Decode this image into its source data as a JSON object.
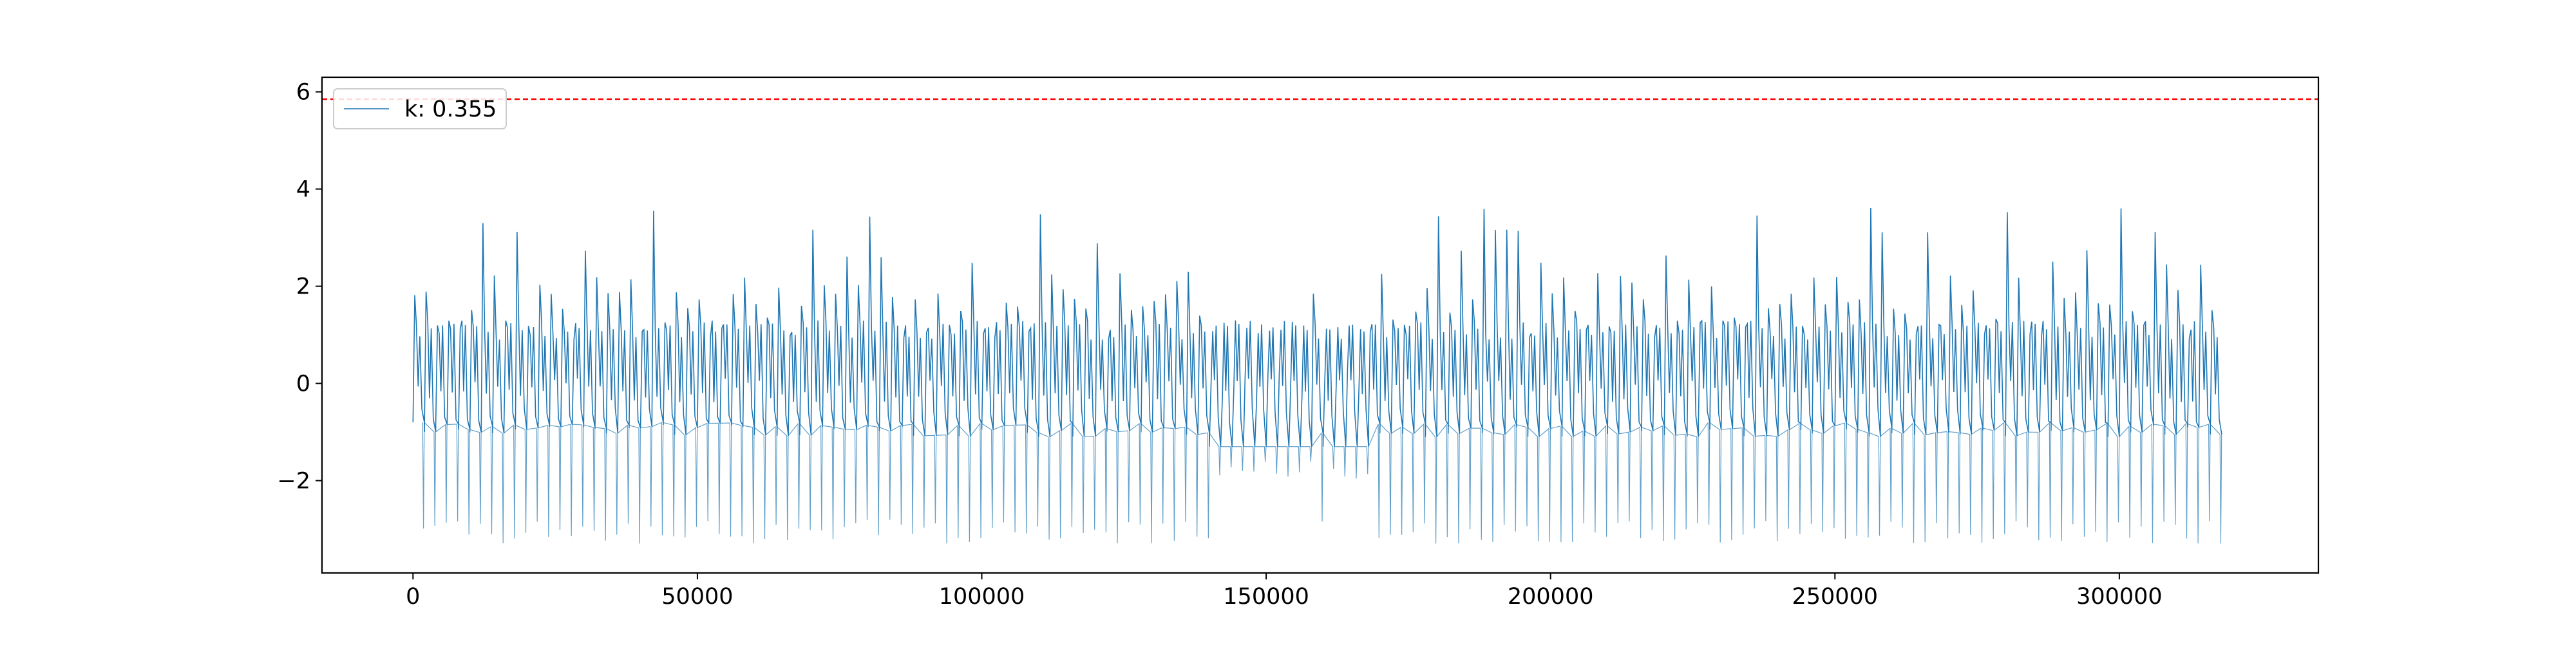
{
  "chart_data": {
    "type": "line",
    "title": "",
    "xlabel": "",
    "ylabel": "",
    "xlim": [
      -16000,
      335000
    ],
    "ylim": [
      -3.9,
      6.3
    ],
    "x_range": [
      0,
      319000
    ],
    "x_ticks": [
      0,
      50000,
      100000,
      150000,
      200000,
      250000,
      300000
    ],
    "x_tick_labels": [
      "0",
      "50000",
      "100000",
      "150000",
      "200000",
      "250000",
      "300000"
    ],
    "y_ticks": [
      -2,
      0,
      2,
      4,
      6
    ],
    "y_tick_labels": [
      "−2",
      "0",
      "2",
      "4",
      "6"
    ],
    "threshold": {
      "value": 5.85,
      "color": "#ff0000",
      "style": "dashed"
    },
    "series": [
      {
        "name": "k: 0.355",
        "color": "#1f77b4",
        "envelope": {
          "upper_typical": 2.1,
          "upper_peak_max": 3.7,
          "lower_typical": -3.3,
          "midline": 0.0,
          "low_activity_intervals": [
            [
              140000,
              157000
            ],
            [
              161000,
              168000
            ]
          ]
        }
      }
    ],
    "legend": {
      "position": "top-left",
      "entries": [
        "k: 0.355"
      ]
    },
    "grid": false
  }
}
